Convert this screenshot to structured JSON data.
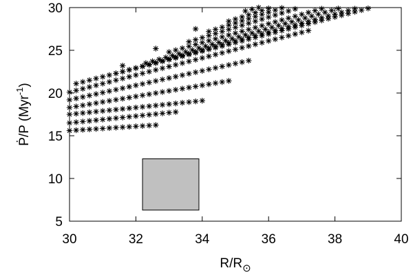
{
  "chart_data": {
    "type": "scatter",
    "title": "",
    "xlabel": {
      "main": "R/R",
      "subscript": "⊙"
    },
    "ylabel": {
      "main": "Ṗ/P (Myr",
      "superscript": "-1",
      "suffix": ")"
    },
    "xlim": [
      30,
      40
    ],
    "ylim": [
      5,
      30
    ],
    "xticks": [
      30,
      32,
      34,
      36,
      38,
      40
    ],
    "yticks": [
      5,
      10,
      15,
      20,
      25,
      30
    ],
    "marker": "asterisk",
    "marker_color": "#000000",
    "grid": false,
    "legend": "none",
    "rows": [
      {
        "y0": 15.6,
        "dy": 0.05,
        "xs": [
          30.0,
          30.2,
          30.4,
          30.6,
          30.8,
          31.0,
          31.2,
          31.4,
          31.6,
          31.8,
          32.0,
          32.2,
          32.4,
          32.6
        ]
      },
      {
        "y0": 16.5,
        "dy": 0.08,
        "xs": [
          30.0,
          30.2,
          30.4,
          30.6,
          30.8,
          31.0,
          31.2,
          31.4,
          31.6,
          31.8,
          32.0,
          32.2,
          32.4,
          32.6,
          32.8,
          33.0,
          33.2
        ]
      },
      {
        "y0": 17.5,
        "dy": 0.08,
        "xs": [
          30.0,
          30.2,
          30.4,
          30.6,
          30.8,
          31.0,
          31.2,
          31.4,
          31.6,
          31.8,
          32.0,
          32.2,
          32.4,
          32.6,
          32.8,
          33.0,
          33.2,
          33.4,
          33.6,
          33.8,
          34.0
        ]
      },
      {
        "y0": 18.3,
        "dy": 0.13,
        "xs": [
          30.0,
          30.2,
          30.4,
          30.6,
          30.8,
          31.0,
          31.2,
          31.4,
          31.6,
          31.8,
          32.0,
          32.2,
          32.4,
          32.6,
          32.8,
          33.0,
          33.2,
          33.4,
          33.6,
          33.8,
          34.0,
          34.2,
          34.4,
          34.6,
          34.8
        ]
      },
      {
        "y0": 19.2,
        "dy": 0.17,
        "xs": [
          30.0,
          30.2,
          30.4,
          30.6,
          30.8,
          31.0,
          31.2,
          31.4,
          31.6,
          31.8,
          32.0,
          32.2,
          32.4,
          32.6,
          32.8,
          33.0,
          33.2,
          33.4,
          33.6,
          33.8,
          34.0,
          34.2,
          34.4,
          34.6,
          34.8,
          35.0,
          35.2,
          35.4
        ]
      },
      {
        "y0": 20.1,
        "dy": 0.2,
        "xs": [
          30.0,
          30.2,
          30.4,
          30.6,
          30.8,
          31.0,
          31.2,
          31.4,
          31.6,
          31.8,
          32.0,
          32.2,
          32.4,
          32.6,
          32.8,
          33.0,
          33.2,
          33.4,
          33.6,
          33.8,
          34.0,
          34.2,
          34.4,
          34.6,
          34.8,
          35.0,
          35.2,
          35.4,
          35.6,
          35.8,
          36.0,
          36.2,
          36.4,
          36.6,
          36.8,
          37.0,
          37.2
        ]
      },
      {
        "y0": 21.1,
        "dy": 0.2,
        "xs": [
          30.2,
          30.4,
          30.6,
          30.8,
          31.0,
          31.2,
          31.4,
          31.6,
          31.8,
          32.0,
          32.2,
          32.4,
          32.6,
          32.8,
          33.0,
          33.2,
          33.4,
          33.6,
          33.8,
          34.0,
          34.2,
          34.4,
          34.6,
          34.8,
          35.0,
          35.2,
          35.4,
          35.6,
          35.8,
          36.0,
          36.2,
          36.4,
          36.6,
          36.8,
          37.0,
          37.2,
          37.4,
          37.6,
          37.8,
          38.0,
          38.2,
          38.4,
          38.6,
          38.8,
          39.0
        ]
      },
      {
        "y0": 22.3,
        "dy": 0.21,
        "xs": [
          31.4,
          31.6,
          31.8,
          32.0,
          32.2,
          32.4,
          32.6,
          32.8,
          33.0,
          33.2,
          33.4,
          33.6,
          33.8,
          34.0,
          34.2,
          34.4,
          34.6,
          34.8,
          35.0,
          35.2,
          35.4,
          35.6,
          35.8,
          36.0,
          36.2,
          36.4,
          36.6,
          36.8,
          37.0,
          37.2,
          37.4,
          37.6,
          37.8,
          38.0,
          38.2,
          38.4,
          38.6,
          38.8,
          39.0,
          39.2,
          39.4,
          39.6,
          39.8
        ]
      },
      {
        "y0": 23.5,
        "dy": 0.22,
        "xs": [
          32.3,
          32.5,
          32.7,
          32.9,
          33.1,
          33.3,
          33.5,
          33.7,
          33.9,
          34.1,
          34.3,
          34.5,
          34.7,
          34.9,
          35.1,
          35.3,
          35.5,
          35.7,
          35.9,
          36.1,
          36.3,
          36.5,
          36.7,
          36.9,
          37.1,
          37.3,
          37.5,
          37.7,
          37.9,
          38.1,
          38.3,
          38.5,
          38.7,
          38.9,
          39.1,
          39.3,
          39.5,
          39.7,
          39.9
        ]
      },
      {
        "y0": 24.8,
        "dy": 0.22,
        "xs": [
          33.0,
          33.2,
          33.4,
          33.6,
          33.8,
          34.0,
          34.2,
          34.4,
          34.6,
          34.8,
          35.0,
          35.2,
          35.4,
          35.6,
          35.8,
          36.0,
          36.2,
          36.4,
          36.6,
          36.8,
          37.0,
          37.2,
          37.4,
          37.6,
          37.8,
          38.0,
          38.2,
          38.4,
          38.6,
          38.8,
          39.0,
          39.2,
          39.4,
          39.6,
          39.8
        ]
      },
      {
        "y0": 26.0,
        "dy": 0.24,
        "xs": [
          33.6,
          33.8,
          34.0,
          34.2,
          34.4,
          34.6,
          34.8,
          35.0,
          35.2,
          35.4,
          35.6,
          35.8,
          36.0,
          36.2,
          36.4,
          36.6,
          36.8,
          37.0,
          37.2,
          37.4,
          37.6,
          37.8,
          38.0,
          38.2,
          38.4,
          38.6,
          38.8,
          39.0,
          39.2,
          39.4,
          39.6,
          39.8
        ]
      },
      {
        "y0": 27.2,
        "dy": 0.25,
        "xs": [
          34.2,
          34.4,
          34.6,
          34.8,
          35.0,
          35.2,
          35.4,
          35.6,
          35.8,
          36.0,
          36.2,
          36.4,
          36.6,
          36.8,
          37.0,
          37.2,
          37.4,
          37.6,
          37.8,
          38.0,
          38.2,
          38.4,
          38.6,
          38.8,
          39.0,
          39.2,
          39.4,
          39.6,
          39.8
        ]
      },
      {
        "y0": 28.4,
        "dy": 0.25,
        "xs": [
          34.8,
          35.0,
          35.2,
          35.4,
          35.6,
          35.8,
          36.0,
          36.2,
          36.4,
          36.6,
          36.8,
          37.0,
          37.2,
          37.4,
          37.6,
          37.8,
          38.0,
          38.2,
          38.4,
          38.6,
          38.8,
          39.0,
          39.2,
          39.4
        ]
      },
      {
        "y0": 29.6,
        "dy": 0.2,
        "xs": [
          35.3,
          35.5,
          35.7,
          35.9,
          36.1,
          36.3,
          36.5,
          36.7,
          36.9,
          37.1,
          37.3,
          37.5,
          37.7,
          37.9,
          38.1,
          38.3,
          38.5,
          38.7,
          38.9
        ]
      },
      {
        "y0": 27.5,
        "dy": 0.0,
        "xs": [
          33.8
        ]
      },
      {
        "y0": 25.2,
        "dy": 0.0,
        "xs": [
          32.6
        ]
      },
      {
        "y0": 23.2,
        "dy": 0.0,
        "xs": [
          31.6
        ]
      }
    ],
    "shaded_region": {
      "x": [
        32.2,
        33.9
      ],
      "y": [
        6.3,
        12.3
      ],
      "fill": "#c0c0c0",
      "stroke": "#000000"
    }
  }
}
